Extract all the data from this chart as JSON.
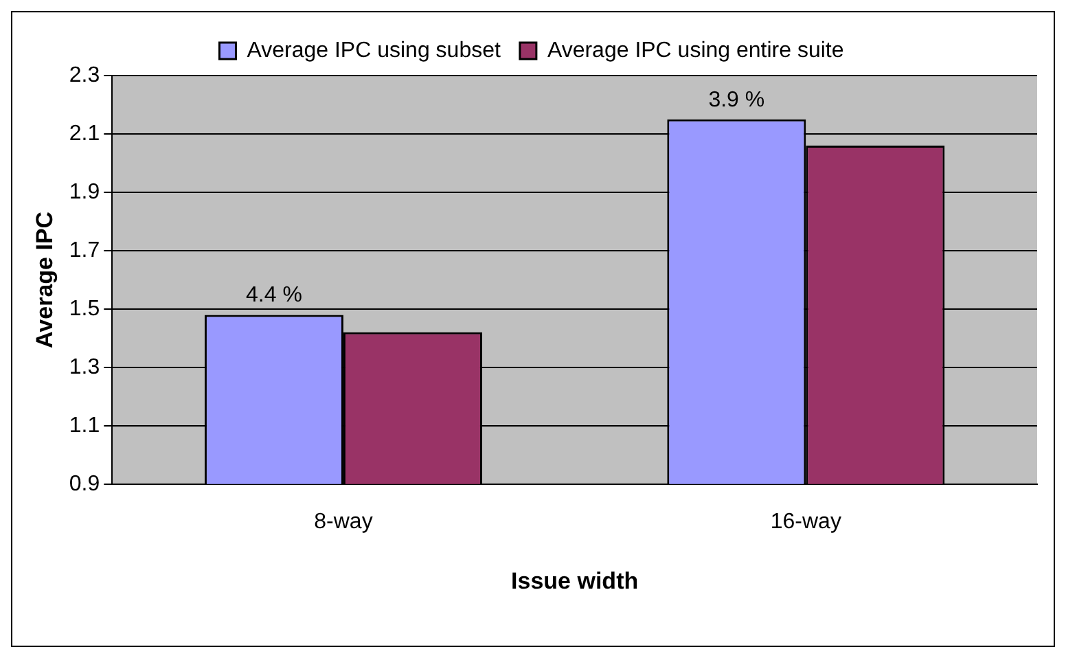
{
  "chart_data": {
    "type": "bar",
    "xlabel": "Issue width",
    "ylabel": "Average IPC",
    "categories": [
      "8-way",
      "16-way"
    ],
    "series": [
      {
        "name": "Average IPC using subset",
        "color": "#9999ff",
        "values": [
          1.48,
          2.15
        ]
      },
      {
        "name": "Average IPC using entire suite",
        "color": "#993366",
        "values": [
          1.42,
          2.06
        ]
      }
    ],
    "ylim": [
      0.9,
      2.3
    ],
    "yticks": [
      {
        "value": 0.9,
        "label": "0.9"
      },
      {
        "value": 1.1,
        "label": "1.1"
      },
      {
        "value": 1.3,
        "label": "1.3"
      },
      {
        "value": 1.5,
        "label": "1.5"
      },
      {
        "value": 1.7,
        "label": "1.7"
      },
      {
        "value": 1.9,
        "label": "1.9"
      },
      {
        "value": 2.1,
        "label": "2.1"
      },
      {
        "value": 2.3,
        "label": "2.3"
      }
    ],
    "grid": "y",
    "legend": "top",
    "annotations": [
      {
        "text": "4.4 %",
        "x": "8-way",
        "y": 1.48
      },
      {
        "text": "3.9 %",
        "x": "16-way",
        "y": 2.15
      }
    ]
  }
}
